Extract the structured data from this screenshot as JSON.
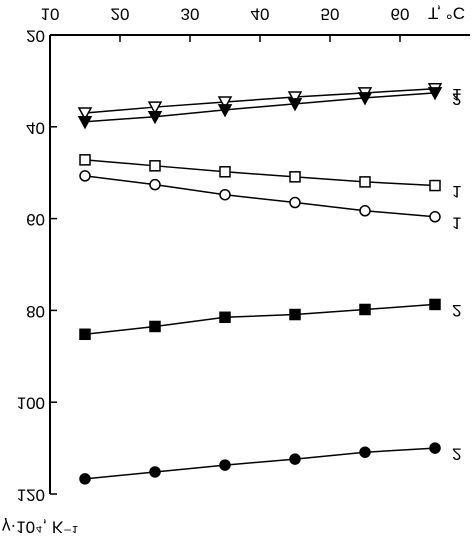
{
  "chart_data": {
    "type": "line",
    "x_label": "T, °C",
    "y_label": "γ·10⁴, K⁻¹",
    "xlim": [
      10,
      70
    ],
    "xticks": [
      10,
      20,
      30,
      40,
      50,
      60
    ],
    "ylim": [
      20,
      120
    ],
    "yticks": [
      20,
      40,
      60,
      80,
      100,
      120
    ],
    "y_reversed": true,
    "x": [
      15,
      25,
      35,
      45,
      55,
      65
    ],
    "series": [
      {
        "name": "1",
        "color": "#000000",
        "marker": "triangle-down",
        "filled": false,
        "values": [
          37.0,
          35.7,
          34.6,
          33.5,
          32.6,
          31.7
        ]
      },
      {
        "name": "2",
        "color": "#000000",
        "marker": "triangle-down",
        "filled": true,
        "values": [
          38.9,
          37.8,
          36.3,
          35.0,
          33.7,
          32.6
        ]
      },
      {
        "name": "1",
        "color": "#000000",
        "marker": "square",
        "filled": false,
        "values": [
          47.2,
          48.5,
          49.8,
          50.9,
          52.0,
          52.8
        ]
      },
      {
        "name": "1",
        "color": "#000000",
        "marker": "circle",
        "filled": false,
        "values": [
          50.7,
          52.6,
          54.8,
          56.5,
          58.3,
          59.6
        ]
      },
      {
        "name": "2",
        "color": "#000000",
        "marker": "square",
        "filled": true,
        "values": [
          85.2,
          83.5,
          81.5,
          80.9,
          79.8,
          78.7
        ]
      },
      {
        "name": "2",
        "color": "#000000",
        "marker": "circle",
        "filled": true,
        "values": [
          116.7,
          115.2,
          113.7,
          112.4,
          110.9,
          110.0
        ]
      }
    ]
  }
}
